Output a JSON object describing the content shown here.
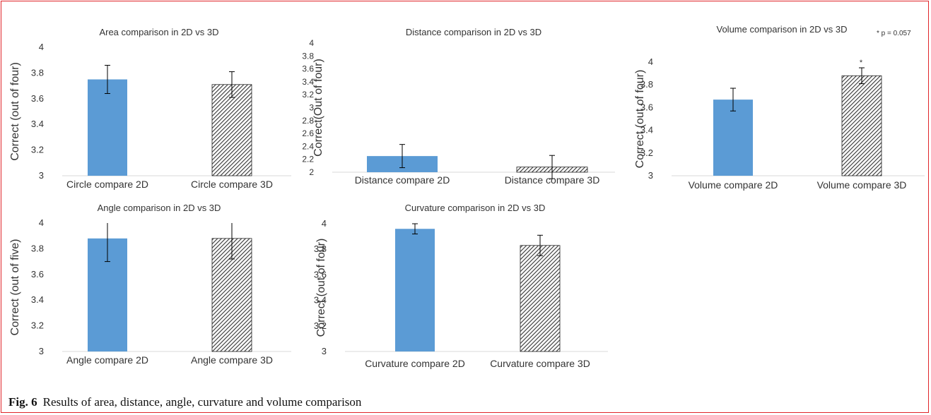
{
  "caption": {
    "label": "Fig. 6",
    "text": "Results of area, distance, angle, curvature and volume comparison"
  },
  "colors": {
    "bar_2d": "#5b9bd5",
    "hatch": "#333333",
    "axis": "#d9d9d9",
    "text": "#333333"
  },
  "chart_data": [
    {
      "type": "bar",
      "title": "Area comparison in 2D vs 3D",
      "ylabel": "Correct (out of four)",
      "categories": [
        "Circle compare 2D",
        "Circle compare 3D"
      ],
      "values": [
        3.75,
        3.71
      ],
      "errors": [
        0.11,
        0.1
      ],
      "ylim": [
        3,
        4
      ],
      "yticks": [
        "3",
        "3.2",
        "3.4",
        "3.6",
        "3.8",
        "4"
      ],
      "annotation": ""
    },
    {
      "type": "bar",
      "title": "Distance comparison in 2D vs 3D",
      "ylabel": "Correct(Out of four)",
      "categories": [
        "Distance compare 2D",
        "Distance compare 3D"
      ],
      "values": [
        2.25,
        2.08
      ],
      "errors": [
        0.18,
        0.18
      ],
      "ylim": [
        2,
        4
      ],
      "yticks": [
        "2",
        "2.2",
        "2.4",
        "2.6",
        "2.8",
        "3",
        "3.2",
        "3.4",
        "3.6",
        "3.8",
        "4"
      ],
      "annotation": ""
    },
    {
      "type": "bar",
      "title": "Volume comparison in 2D vs 3D",
      "ylabel": "Correct (out of four)",
      "categories": [
        "Volume compare 2D",
        "Volume compare 3D"
      ],
      "values": [
        3.67,
        3.88
      ],
      "errors": [
        0.1,
        0.07
      ],
      "ylim": [
        3,
        4
      ],
      "yticks": [
        "3",
        "3.2",
        "3.4",
        "3.6",
        "3.8",
        "4"
      ],
      "annotation": "* p = 0.057",
      "star": "*"
    },
    {
      "type": "bar",
      "title": "Angle comparison in 2D vs 3D",
      "ylabel": "Correct (out of five)",
      "categories": [
        "Angle compare 2D",
        "Angle compare 3D"
      ],
      "values": [
        3.88,
        3.88
      ],
      "errors": [
        0.18,
        0.16
      ],
      "ylim": [
        3,
        4
      ],
      "yticks": [
        "3",
        "3.2",
        "3.4",
        "3.6",
        "3.8",
        "4"
      ],
      "annotation": ""
    },
    {
      "type": "bar",
      "title": "Curvature comparison in 2D vs 3D",
      "ylabel": "Correct (out of four)",
      "categories": [
        "Curvature compare 2D",
        "Curvature compare 3D"
      ],
      "values": [
        3.96,
        3.83
      ],
      "errors": [
        0.04,
        0.08
      ],
      "ylim": [
        3,
        4
      ],
      "yticks": [
        "3",
        "3.2",
        "3.4",
        "3.6",
        "3.8",
        "4"
      ],
      "annotation": ""
    }
  ]
}
